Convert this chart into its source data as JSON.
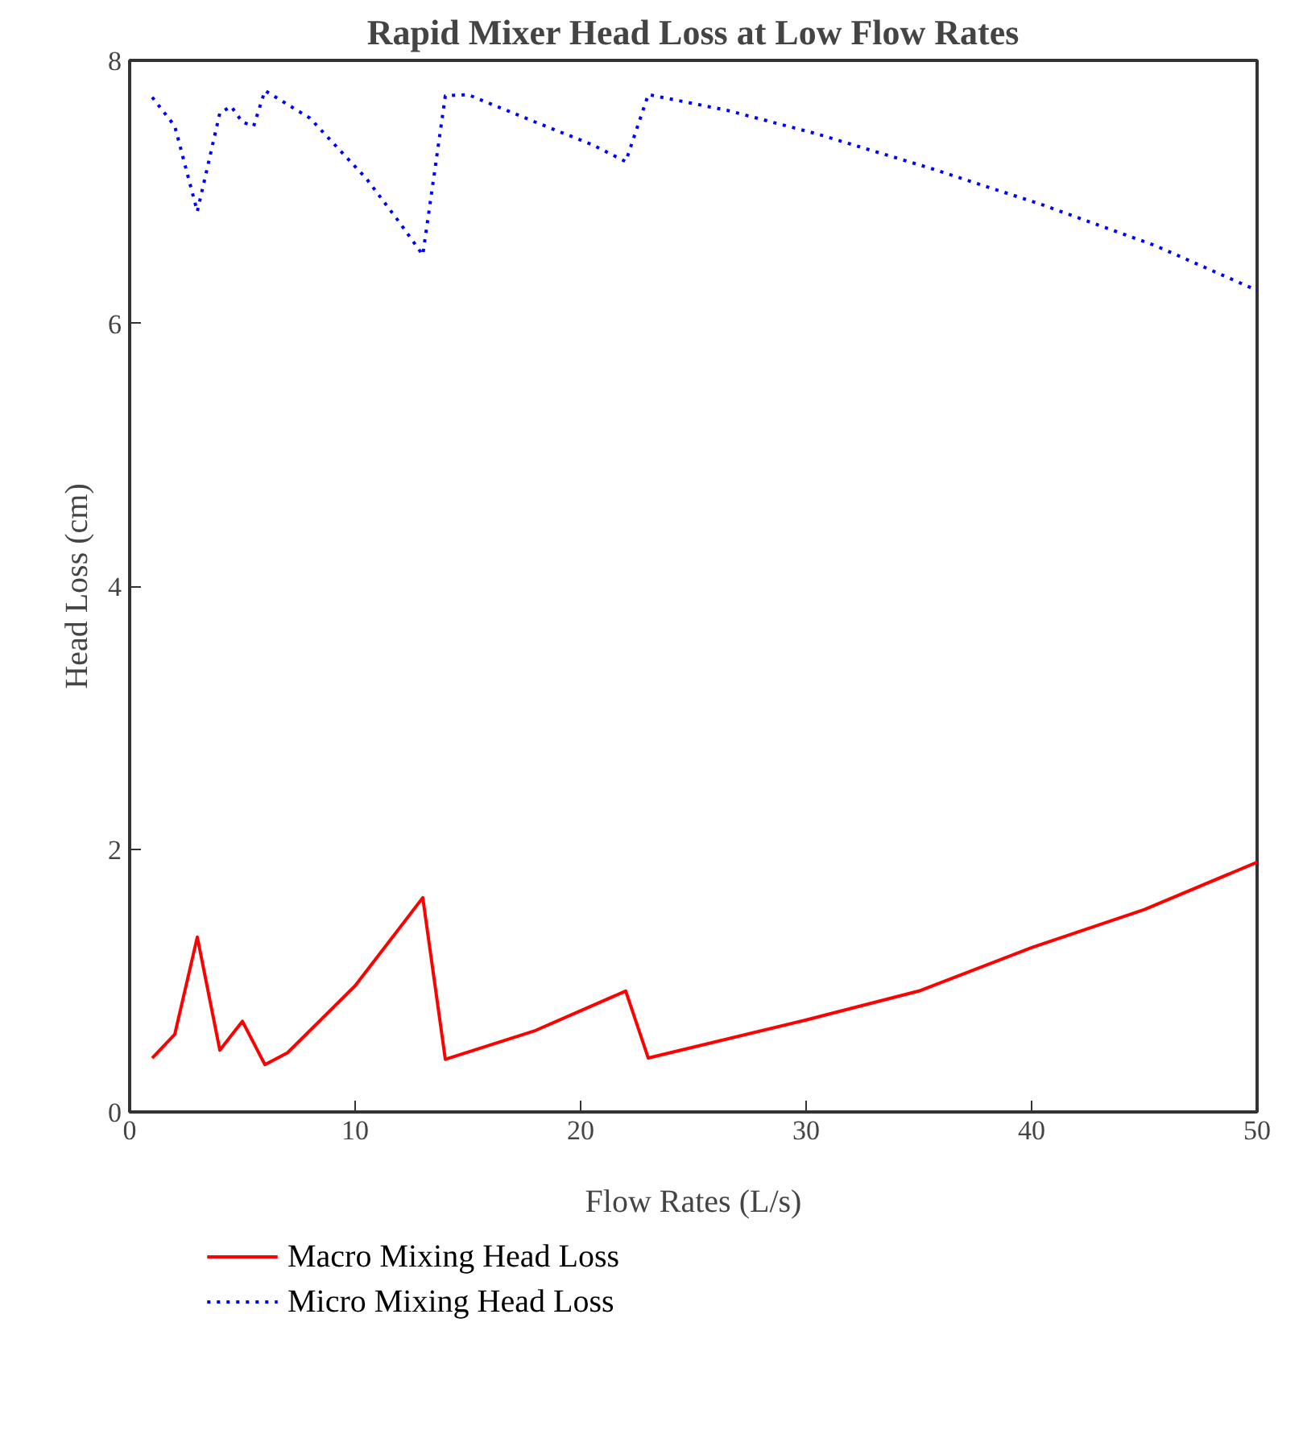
{
  "chart_data": {
    "type": "line",
    "title": "Rapid Mixer Head Loss at Low Flow Rates",
    "xlabel": "Flow Rates (L/s)",
    "ylabel": "Head Loss (cm)",
    "xlim": [
      0,
      50
    ],
    "ylim": [
      0,
      8
    ],
    "xticks": [
      0,
      10,
      20,
      30,
      40,
      50
    ],
    "yticks": [
      0,
      2,
      4,
      6,
      8
    ],
    "grid": false,
    "legend": "bottom",
    "marker": "none",
    "series": [
      {
        "name": "Macro Mixing Head Loss",
        "color": "#ff0000",
        "line_style": "solid",
        "x": [
          1,
          2,
          3,
          4,
          5,
          6,
          7,
          10,
          13,
          14,
          18,
          22,
          23,
          30,
          35,
          40,
          45,
          50
        ],
        "values": [
          0.41,
          0.59,
          1.33,
          0.47,
          0.69,
          0.36,
          0.45,
          0.96,
          1.63,
          0.4,
          0.62,
          0.92,
          0.41,
          0.7,
          0.92,
          1.25,
          1.54,
          1.9
        ]
      },
      {
        "name": "Micro Mixing Head Loss",
        "color": "#0000ff",
        "line_style": "dotted",
        "x": [
          1,
          2,
          3,
          4,
          4.5,
          5,
          5.5,
          6,
          8,
          10.5,
          12,
          13,
          14,
          15,
          18,
          20.5,
          22,
          23,
          26.5,
          30.5,
          35.5,
          40.5,
          45.5,
          50
        ],
        "values": [
          7.72,
          7.5,
          6.85,
          7.6,
          7.65,
          7.53,
          7.5,
          7.77,
          7.56,
          7.1,
          6.76,
          6.52,
          7.73,
          7.74,
          7.53,
          7.36,
          7.23,
          7.74,
          7.62,
          7.44,
          7.18,
          6.9,
          6.59,
          6.25
        ]
      }
    ]
  }
}
